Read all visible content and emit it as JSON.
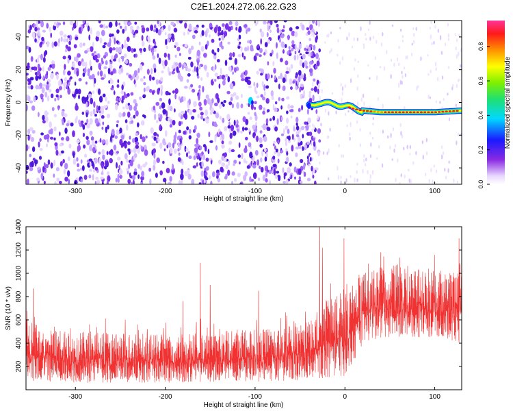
{
  "figure_title": "C2E1.2024.272.06.22.G23",
  "chart_data": [
    {
      "type": "heatmap",
      "xlabel": "Height of straight line (km)",
      "ylabel": "Frequency (Hz)",
      "xlim": [
        -355,
        130
      ],
      "ylim": [
        -50,
        50
      ],
      "x_ticks": [
        -300,
        -200,
        -100,
        0,
        100
      ],
      "y_ticks": [
        -40,
        -20,
        0,
        20,
        40
      ],
      "colorbar": {
        "label": "Normalized spectral amplitude",
        "range": [
          0.0,
          0.95
        ],
        "ticks": [
          0.0,
          0.2,
          0.4,
          0.6,
          0.8
        ],
        "colormap": "rainbow (purple-blue-cyan-green-yellow-red-magenta)"
      },
      "signal_track": [
        {
          "x": -40,
          "y": -2
        },
        {
          "x": -30,
          "y": 0
        },
        {
          "x": -20,
          "y": -1
        },
        {
          "x": -10,
          "y": -1
        },
        {
          "x": 0,
          "y": -2
        },
        {
          "x": 10,
          "y": -4
        },
        {
          "x": 20,
          "y": -5
        },
        {
          "x": 40,
          "y": -6
        },
        {
          "x": 60,
          "y": -6
        },
        {
          "x": 80,
          "y": -6
        },
        {
          "x": 100,
          "y": -6
        },
        {
          "x": 130,
          "y": -5
        }
      ],
      "noise_region_x": [
        -355,
        -40
      ],
      "grid": false
    },
    {
      "type": "line",
      "xlabel": "Height of straight line (km)",
      "ylabel": "SNR (10 * v/v)",
      "xlim": [
        -355,
        130
      ],
      "ylim": [
        0,
        1400
      ],
      "x_ticks": [
        -300,
        -200,
        -100,
        0,
        100
      ],
      "y_ticks": [
        200,
        400,
        600,
        800,
        1000,
        1200,
        1400
      ],
      "series": [
        {
          "color": "#f03232",
          "envelope_x": [
            -355,
            -300,
            -200,
            -150,
            -100,
            -50,
            -30,
            -20,
            0,
            10,
            20,
            40,
            60,
            80,
            100,
            130
          ],
          "low": [
            80,
            60,
            60,
            70,
            70,
            80,
            100,
            100,
            120,
            250,
            400,
            450,
            450,
            450,
            450,
            400
          ],
          "high": [
            600,
            500,
            480,
            500,
            520,
            560,
            620,
            800,
            880,
            900,
            1000,
            1050,
            1080,
            1050,
            1050,
            1000
          ]
        }
      ],
      "spikes": [
        {
          "x": -347,
          "y": 870
        },
        {
          "x": -180,
          "y": 760
        },
        {
          "x": -161,
          "y": 1090
        },
        {
          "x": -150,
          "y": 900
        },
        {
          "x": -96,
          "y": 850
        },
        {
          "x": -28,
          "y": 1400
        },
        {
          "x": -25,
          "y": 1220
        },
        {
          "x": -1,
          "y": 1300
        },
        {
          "x": 40,
          "y": 1180
        },
        {
          "x": 127,
          "y": 1300
        }
      ],
      "grid": false
    }
  ]
}
